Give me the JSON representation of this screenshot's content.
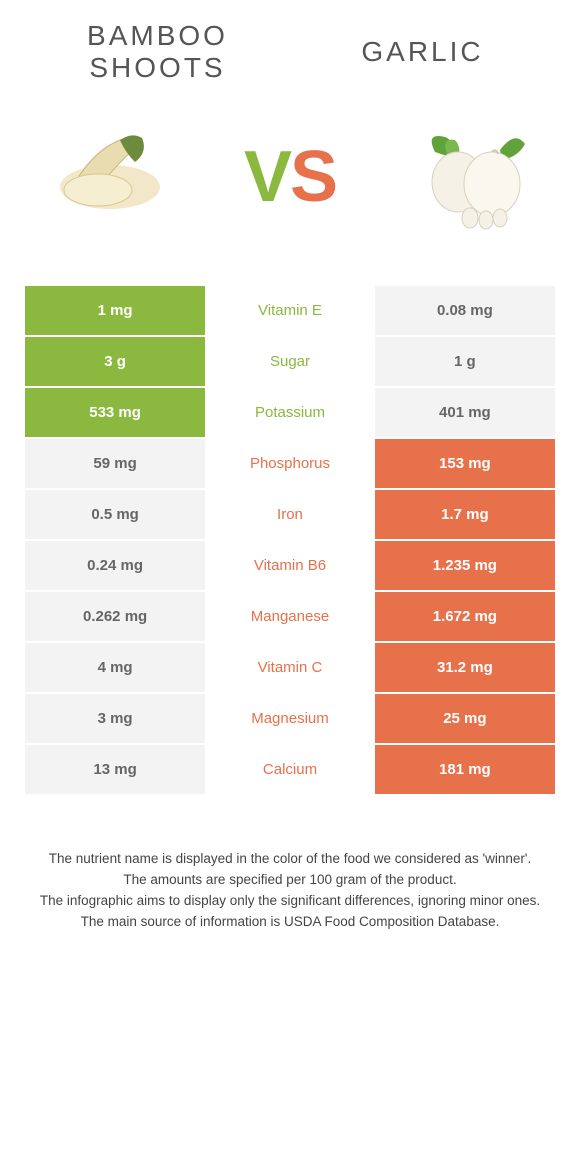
{
  "header": {
    "left_title": "BAMBOO SHOOTS",
    "right_title": "GARLIC",
    "vs_v": "V",
    "vs_s": "S"
  },
  "colors": {
    "green": "#8bb83e",
    "orange": "#e7714a",
    "gray": "#f3f3f3",
    "text_dark": "#444444",
    "white": "#ffffff"
  },
  "rows": [
    {
      "nutrient": "Vitamin E",
      "left": "1 mg",
      "right": "0.08 mg",
      "winner": "left"
    },
    {
      "nutrient": "Sugar",
      "left": "3 g",
      "right": "1 g",
      "winner": "left"
    },
    {
      "nutrient": "Potassium",
      "left": "533 mg",
      "right": "401 mg",
      "winner": "left"
    },
    {
      "nutrient": "Phosphorus",
      "left": "59 mg",
      "right": "153 mg",
      "winner": "right"
    },
    {
      "nutrient": "Iron",
      "left": "0.5 mg",
      "right": "1.7 mg",
      "winner": "right"
    },
    {
      "nutrient": "Vitamin B6",
      "left": "0.24 mg",
      "right": "1.235 mg",
      "winner": "right"
    },
    {
      "nutrient": "Manganese",
      "left": "0.262 mg",
      "right": "1.672 mg",
      "winner": "right"
    },
    {
      "nutrient": "Vitamin C",
      "left": "4 mg",
      "right": "31.2 mg",
      "winner": "right"
    },
    {
      "nutrient": "Magnesium",
      "left": "3 mg",
      "right": "25 mg",
      "winner": "right"
    },
    {
      "nutrient": "Calcium",
      "left": "13 mg",
      "right": "181 mg",
      "winner": "right"
    }
  ],
  "footnotes": [
    "The nutrient name is displayed in the color of the food we considered as 'winner'.",
    "The amounts are specified per 100 gram of the product.",
    "The infographic aims to display only the significant differences, ignoring minor ones.",
    "The main source of information is USDA Food Composition Database."
  ]
}
